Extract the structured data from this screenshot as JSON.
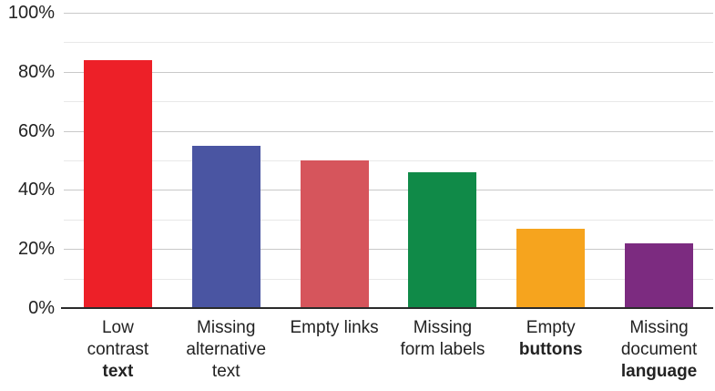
{
  "chart_data": {
    "type": "bar",
    "title": "",
    "xlabel": "",
    "ylabel": "",
    "unit": "%",
    "ylim": [
      0,
      100
    ],
    "y_major_step": 20,
    "y_minor_step": 10,
    "y_tick_labels": [
      "0%",
      "20%",
      "40%",
      "60%",
      "80%",
      "100%"
    ],
    "grid": "horizontal",
    "legend": "none",
    "categories": [
      "Low contrast text",
      "Missing alternative text",
      "Empty links",
      "Missing form labels",
      "Empty buttons",
      "Missing document language"
    ],
    "values": [
      84,
      55,
      50,
      46,
      27,
      22
    ],
    "bars": [
      {
        "name": "low-contrast-text",
        "value": 84,
        "color": "#ed2028",
        "label_lines": [
          {
            "text": "Low",
            "bold": false
          },
          {
            "text": "contrast",
            "bold": false
          },
          {
            "text": "text",
            "bold": true
          }
        ]
      },
      {
        "name": "missing-alternative-text",
        "value": 55,
        "color": "#4a55a2",
        "label_lines": [
          {
            "text": "Missing",
            "bold": false
          },
          {
            "text": "alternative",
            "bold": false
          },
          {
            "text": "text",
            "bold": false
          }
        ]
      },
      {
        "name": "empty-links",
        "value": 50,
        "color": "#d6555c",
        "label_lines": [
          {
            "text": "Empty links",
            "bold": false
          }
        ]
      },
      {
        "name": "missing-form-labels",
        "value": 46,
        "color": "#108a48",
        "label_lines": [
          {
            "text": "Missing",
            "bold": false
          },
          {
            "text": "form labels",
            "bold": false
          }
        ]
      },
      {
        "name": "empty-buttons",
        "value": 27,
        "color": "#f6a41e",
        "label_lines": [
          {
            "text": "Empty",
            "bold": false
          },
          {
            "text": "buttons",
            "bold": true
          }
        ]
      },
      {
        "name": "missing-document-language",
        "value": 22,
        "color": "#7c2b80",
        "label_lines": [
          {
            "text": "Missing",
            "bold": false
          },
          {
            "text": "document",
            "bold": false
          },
          {
            "text": "language",
            "bold": true
          }
        ]
      }
    ]
  },
  "style": {
    "background": "#ffffff",
    "text_color": "#222222",
    "axis_line_color": "#2b2b2b",
    "major_grid_color": "#c9c9c9",
    "minor_grid_color": "#e8e8e8"
  }
}
